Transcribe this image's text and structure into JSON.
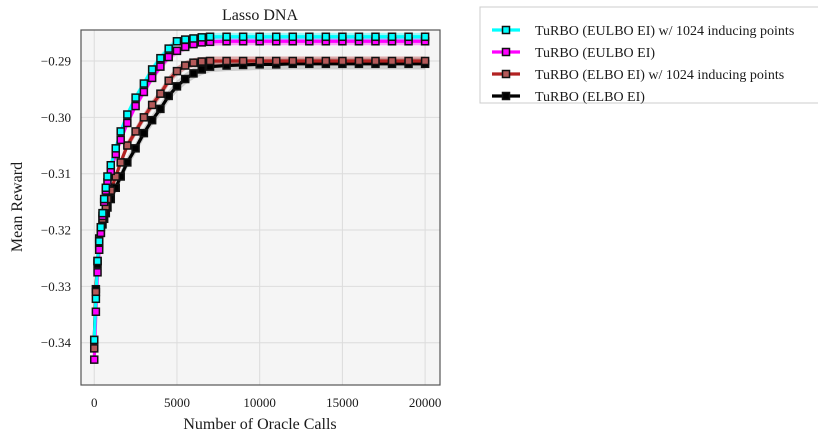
{
  "chart_data": {
    "type": "line",
    "title": "Lasso DNA",
    "xlabel": "Number of Oracle Calls",
    "ylabel": "Mean Reward",
    "xlim": [
      -800,
      20900
    ],
    "ylim": [
      -0.3475,
      -0.2845
    ],
    "xticks": [
      0,
      5000,
      10000,
      15000,
      20000
    ],
    "xtick_labels": [
      "0",
      "5000",
      "10000",
      "15000",
      "20000"
    ],
    "yticks": [
      -0.34,
      -0.33,
      -0.32,
      -0.31,
      -0.3,
      -0.29
    ],
    "ytick_labels": [
      "−0.34",
      "−0.33",
      "−0.32",
      "−0.31",
      "−0.30",
      "−0.29"
    ],
    "grid": true,
    "plot_background": "#f5f5f5",
    "legend_position": "outside right, top",
    "series": [
      {
        "name": "TuRBO (EULBO EI) w/ 1024 inducing points",
        "color": "#00ffff",
        "marker": "square",
        "marker_face": "#00ffff",
        "x": [
          0,
          100,
          200,
          300,
          400,
          500,
          600,
          700,
          800,
          1000,
          1300,
          1600,
          2000,
          2500,
          3000,
          3500,
          4000,
          4500,
          5000,
          5500,
          6000,
          6500,
          7000,
          8000,
          9000,
          10000,
          11000,
          12000,
          13000,
          14000,
          15000,
          16000,
          17000,
          18000,
          19000,
          20000
        ],
        "y": [
          -0.3395,
          -0.3322,
          -0.3255,
          -0.322,
          -0.3195,
          -0.317,
          -0.3145,
          -0.3125,
          -0.3105,
          -0.3085,
          -0.3055,
          -0.3025,
          -0.2995,
          -0.2965,
          -0.294,
          -0.2915,
          -0.2895,
          -0.2878,
          -0.2865,
          -0.2862,
          -0.286,
          -0.2858,
          -0.2857,
          -0.2857,
          -0.2857,
          -0.2857,
          -0.2857,
          -0.2857,
          -0.2857,
          -0.2857,
          -0.2857,
          -0.2857,
          -0.2857,
          -0.2857,
          -0.2857,
          -0.2857
        ],
        "band": 0.0007
      },
      {
        "name": "TuRBO (EULBO EI)",
        "color": "#ff00ff",
        "marker": "square",
        "marker_face": "#ff00ff",
        "x": [
          0,
          100,
          200,
          300,
          400,
          500,
          600,
          700,
          800,
          1000,
          1300,
          1600,
          2000,
          2500,
          3000,
          3500,
          4000,
          4500,
          5000,
          5500,
          6000,
          6500,
          7000,
          8000,
          9000,
          10000,
          11000,
          12000,
          13000,
          14000,
          15000,
          16000,
          17000,
          18000,
          19000,
          20000
        ],
        "y": [
          -0.343,
          -0.3345,
          -0.3275,
          -0.3235,
          -0.3205,
          -0.3175,
          -0.315,
          -0.313,
          -0.3115,
          -0.3095,
          -0.3065,
          -0.304,
          -0.301,
          -0.298,
          -0.2955,
          -0.293,
          -0.291,
          -0.2893,
          -0.2882,
          -0.2875,
          -0.287,
          -0.2867,
          -0.2866,
          -0.2865,
          -0.2865,
          -0.2865,
          -0.2865,
          -0.2865,
          -0.2865,
          -0.2865,
          -0.2865,
          -0.2865,
          -0.2865,
          -0.2865,
          -0.2865,
          -0.2865
        ],
        "band": 0.0007
      },
      {
        "name": "TuRBO (ELBO EI) w/ 1024 inducing points",
        "color": "#b22222",
        "marker": "square",
        "marker_face": "#b55a5a",
        "x": [
          0,
          100,
          200,
          300,
          400,
          500,
          600,
          700,
          800,
          1000,
          1300,
          1600,
          2000,
          2500,
          3000,
          3500,
          4000,
          4500,
          5000,
          5500,
          6000,
          6500,
          7000,
          8000,
          9000,
          10000,
          11000,
          12000,
          13000,
          14000,
          15000,
          16000,
          17000,
          18000,
          19000,
          20000
        ],
        "y": [
          -0.341,
          -0.331,
          -0.3255,
          -0.3215,
          -0.3195,
          -0.318,
          -0.317,
          -0.3158,
          -0.3145,
          -0.313,
          -0.3105,
          -0.308,
          -0.305,
          -0.3025,
          -0.3,
          -0.2978,
          -0.2958,
          -0.2935,
          -0.2918,
          -0.2908,
          -0.2903,
          -0.2901,
          -0.29,
          -0.29,
          -0.29,
          -0.29,
          -0.29,
          -0.29,
          -0.29,
          -0.29,
          -0.29,
          -0.29,
          -0.29,
          -0.29,
          -0.29,
          -0.29
        ],
        "band": 0.0008
      },
      {
        "name": "TuRBO (ELBO EI)",
        "color": "#000000",
        "marker": "square",
        "marker_face": "#000000",
        "x": [
          0,
          100,
          200,
          300,
          400,
          500,
          600,
          700,
          800,
          1000,
          1300,
          1600,
          2000,
          2500,
          3000,
          3500,
          4000,
          4500,
          5000,
          5500,
          6000,
          6500,
          7000,
          8000,
          9000,
          10000,
          11000,
          12000,
          13000,
          14000,
          15000,
          16000,
          17000,
          18000,
          19000,
          20000
        ],
        "y": [
          -0.3395,
          -0.3305,
          -0.326,
          -0.3225,
          -0.3205,
          -0.319,
          -0.318,
          -0.317,
          -0.316,
          -0.3145,
          -0.3125,
          -0.3105,
          -0.308,
          -0.3055,
          -0.3028,
          -0.3005,
          -0.2985,
          -0.2962,
          -0.2945,
          -0.2932,
          -0.2922,
          -0.2915,
          -0.291,
          -0.2908,
          -0.2907,
          -0.2906,
          -0.2906,
          -0.2905,
          -0.2905,
          -0.2905,
          -0.2905,
          -0.2905,
          -0.2905,
          -0.2905,
          -0.2905,
          -0.2905
        ],
        "band": 0.001
      }
    ]
  }
}
